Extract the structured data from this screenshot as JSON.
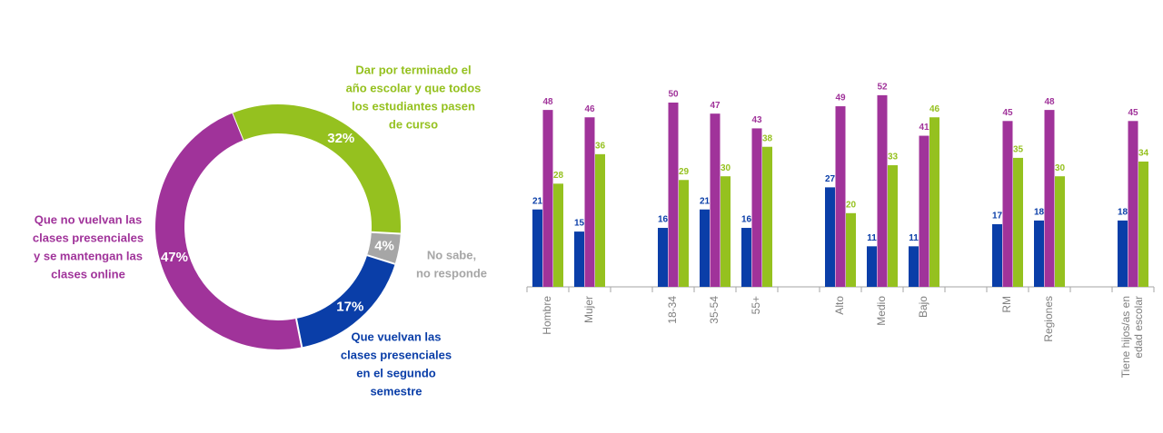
{
  "chart_data": [
    {
      "type": "donut",
      "labels": [
        [
          "Dar por terminado el",
          "año escolar y que todos",
          "los estudiantes pasen",
          "de curso"
        ],
        [
          "No sabe,",
          "no responde"
        ],
        [
          "Que vuelvan las",
          "clases presenciales",
          "en el segundo",
          "semestre"
        ],
        [
          "Que no vuelvan las",
          "clases presenciales",
          "y se mantengan las",
          "clases online"
        ]
      ],
      "values": [
        32,
        4,
        17,
        47
      ],
      "value_labels": [
        "32%",
        "4%",
        "17%",
        "47%"
      ],
      "colors": [
        "#95c11f",
        "#a6a6a6",
        "#0a3ea8",
        "#a0339a"
      ]
    },
    {
      "type": "bar",
      "categories": [
        "Hombre",
        "Mujer",
        null,
        "18-34",
        "35-54",
        "55+",
        null,
        "Alto",
        "Medio",
        "Bajo",
        null,
        "RM",
        "Regiones",
        null,
        "Tiene hijos/as en edad escolar"
      ],
      "series": [
        {
          "color": "#0a3ea8",
          "values": [
            21,
            15,
            null,
            16,
            21,
            16,
            null,
            27,
            11,
            11,
            null,
            17,
            18,
            null,
            18
          ]
        },
        {
          "color": "#a0339a",
          "values": [
            48,
            46,
            null,
            50,
            47,
            43,
            null,
            49,
            52,
            41,
            null,
            45,
            48,
            null,
            45
          ]
        },
        {
          "color": "#95c11f",
          "values": [
            28,
            36,
            null,
            29,
            30,
            38,
            null,
            20,
            33,
            46,
            null,
            35,
            30,
            null,
            34
          ]
        }
      ]
    }
  ]
}
